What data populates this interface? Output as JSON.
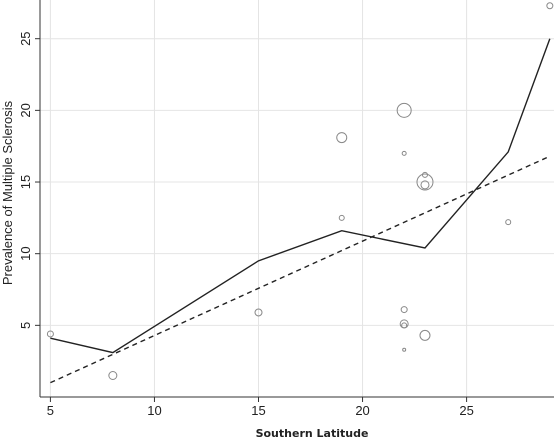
{
  "chart_data": {
    "type": "scatter",
    "title": "",
    "xlabel": "Southern Latitude",
    "ylabel": "Prevalence of Multiple Sclerosis",
    "xlim": [
      4.5,
      29.2
    ],
    "ylim": [
      0,
      27.7
    ],
    "x_ticks": [
      "5",
      "10",
      "15",
      "20",
      "25"
    ],
    "y_ticks": [
      "5",
      "10",
      "15",
      "20",
      "25"
    ],
    "grid": true,
    "point_color": "#888888",
    "line_color": "#222222",
    "grid_color": "#e4e4e4",
    "series": [
      {
        "type": "scatter",
        "points": [
          {
            "x": 5,
            "y": 4.4,
            "size": 3
          },
          {
            "x": 8,
            "y": 1.5,
            "size": 4
          },
          {
            "x": 15,
            "y": 5.9,
            "size": 3.5
          },
          {
            "x": 19,
            "y": 18.1,
            "size": 5
          },
          {
            "x": 19,
            "y": 12.5,
            "size": 2.5
          },
          {
            "x": 22,
            "y": 20.0,
            "size": 7
          },
          {
            "x": 22,
            "y": 17.0,
            "size": 2
          },
          {
            "x": 22,
            "y": 6.1,
            "size": 3
          },
          {
            "x": 22,
            "y": 5.1,
            "size": 4
          },
          {
            "x": 22,
            "y": 5.0,
            "size": 2.5
          },
          {
            "x": 22,
            "y": 3.3,
            "size": 1.5
          },
          {
            "x": 23,
            "y": 15.5,
            "size": 2.5
          },
          {
            "x": 23,
            "y": 15.0,
            "size": 8
          },
          {
            "x": 23,
            "y": 14.8,
            "size": 4
          },
          {
            "x": 23,
            "y": 4.3,
            "size": 5
          },
          {
            "x": 27,
            "y": 12.2,
            "size": 2.5
          },
          {
            "x": 29,
            "y": 27.3,
            "size": 3
          }
        ]
      },
      {
        "type": "line",
        "style": "solid",
        "points": [
          [
            5,
            4.1
          ],
          [
            8,
            3.1
          ],
          [
            15,
            9.5
          ],
          [
            19,
            11.6
          ],
          [
            23,
            10.4
          ],
          [
            27,
            17.1
          ],
          [
            29,
            25.0
          ]
        ]
      },
      {
        "type": "line",
        "style": "dashed",
        "points": [
          [
            5,
            1.0
          ],
          [
            29,
            16.8
          ]
        ]
      }
    ]
  }
}
